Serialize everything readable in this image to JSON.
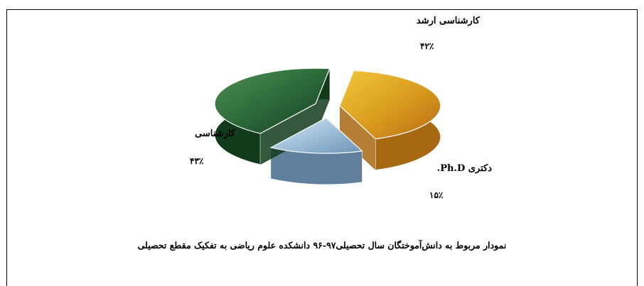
{
  "chart_data": {
    "type": "pie",
    "title": "نمودار مربوط به دانش‌آموختگان سال تحصیلی۹۷-۹۶ دانشکده علوم ریاضی به تفکیک مقطع تحصیلی",
    "labels": [
      "کارشناسی ارشد",
      "دکتری Ph.D.",
      "کارشناسی"
    ],
    "values": [
      42,
      15,
      43
    ],
    "value_labels": [
      "۴۲٪",
      "۱۵٪",
      "۴۳٪"
    ],
    "legend": "none",
    "style": "3d-exploded"
  },
  "colors": {
    "slice_masters": "#e0a020",
    "slice_phd": "#9fc0da",
    "slice_bachelors": "#2d6a3a",
    "frame": "#000000"
  }
}
